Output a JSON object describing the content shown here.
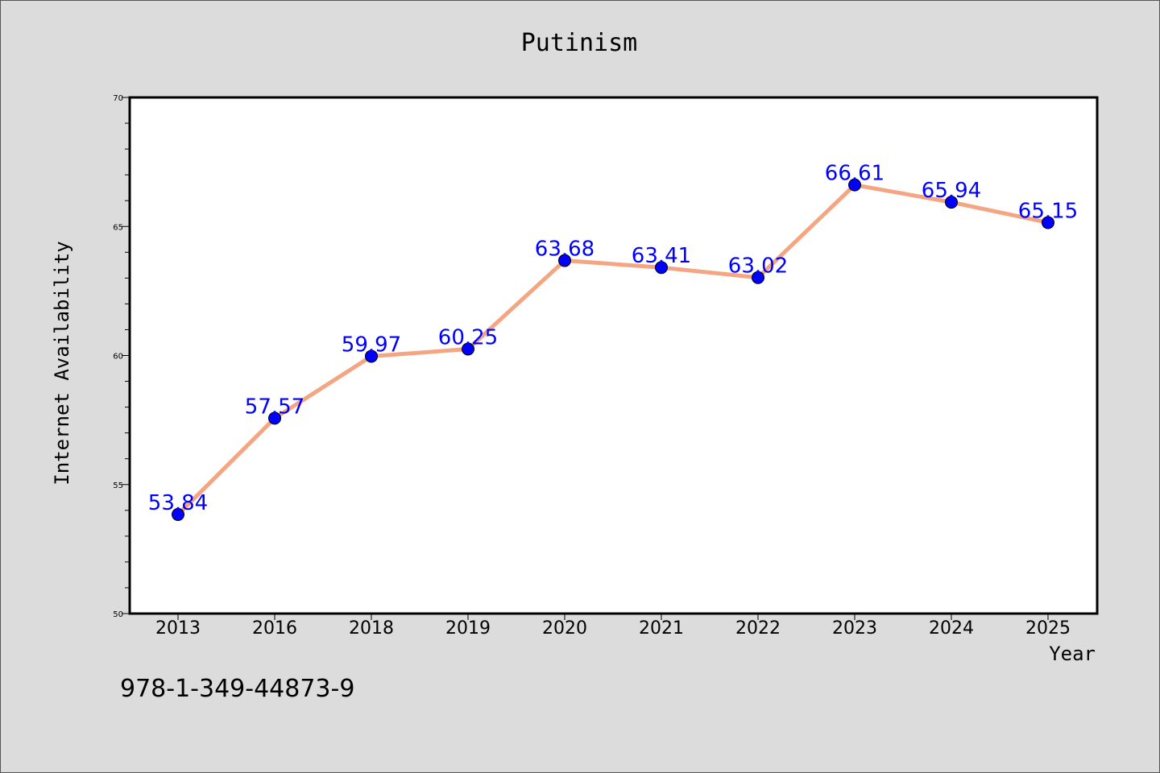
{
  "chart_data": {
    "type": "line",
    "title": "Putinism",
    "xlabel": "Year",
    "ylabel": "Internet Availability",
    "categories": [
      "2013",
      "2016",
      "2018",
      "2019",
      "2020",
      "2021",
      "2022",
      "2023",
      "2024",
      "2025"
    ],
    "series": [
      {
        "values": [
          53.84,
          57.57,
          59.97,
          60.25,
          63.68,
          63.41,
          63.02,
          66.61,
          65.94,
          65.15
        ],
        "line_color": "#f4a582",
        "marker_color": "#0000ff",
        "label_color": "#0000ff"
      }
    ],
    "ylim": [
      50,
      70
    ],
    "y_ticks": [
      50,
      55,
      60,
      65,
      70
    ],
    "grid": false,
    "legend": "none"
  },
  "footer_text": "978-1-349-44873-9",
  "colors": {
    "background": "#dcdcdc",
    "plot_background": "#ffffff"
  }
}
